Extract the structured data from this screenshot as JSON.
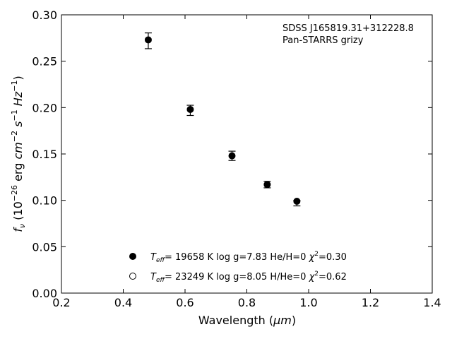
{
  "chart_data": {
    "type": "scatter",
    "xlabel_main": "Wavelength (",
    "xlabel_unit": "μm",
    "xlabel_close": ")",
    "ylabel_parts": [
      "f",
      "ν",
      " (10",
      "−26",
      " erg ",
      "cm",
      "−2",
      " s",
      "−1",
      " Hz",
      "−1",
      ")"
    ],
    "xlim": [
      0.2,
      1.4
    ],
    "ylim": [
      0.0,
      0.3
    ],
    "x_ticks": [
      0.2,
      0.4,
      0.6,
      0.8,
      1.0,
      1.2,
      1.4
    ],
    "x_tick_labels": [
      "0.2",
      "0.4",
      "0.6",
      "0.8",
      "1.0",
      "1.2",
      "1.4"
    ],
    "y_ticks": [
      0.0,
      0.05,
      0.1,
      0.15,
      0.2,
      0.25,
      0.3
    ],
    "y_tick_labels": [
      "0.00",
      "0.05",
      "0.10",
      "0.15",
      "0.20",
      "0.25",
      "0.30"
    ],
    "annotations": [
      "SDSS J165819.31+312228.8",
      "Pan-STARRS grizy"
    ],
    "series": [
      {
        "marker": "filled-circle",
        "label": {
          "T": "T",
          "sub": "eff",
          "rest": "= 19658 K  log g=7.83  He/H=0  ",
          "chi": "χ",
          "sup": "2",
          "end": "=0.30"
        },
        "points": [
          {
            "x": 0.481,
            "y": 0.273
          },
          {
            "x": 0.617,
            "y": 0.198
          },
          {
            "x": 0.752,
            "y": 0.148
          },
          {
            "x": 0.866,
            "y": 0.117
          },
          {
            "x": 0.962,
            "y": 0.099
          }
        ]
      },
      {
        "marker": "open-circle",
        "label": {
          "T": "T",
          "sub": "eff",
          "rest": "= 23249 K  log g=8.05  H/He=0  ",
          "chi": "χ",
          "sup": "2",
          "end": "=0.62"
        },
        "points": []
      }
    ],
    "observed": {
      "points": [
        {
          "x": 0.481,
          "y": 0.272,
          "err": 0.0085
        },
        {
          "x": 0.617,
          "y": 0.197,
          "err": 0.0055
        },
        {
          "x": 0.752,
          "y": 0.148,
          "err": 0.005
        },
        {
          "x": 0.866,
          "y": 0.117,
          "err": 0.0035
        },
        {
          "x": 0.962,
          "y": 0.097,
          "err": 0.003
        }
      ]
    },
    "grid": false,
    "legend_position": "bottom-center"
  }
}
